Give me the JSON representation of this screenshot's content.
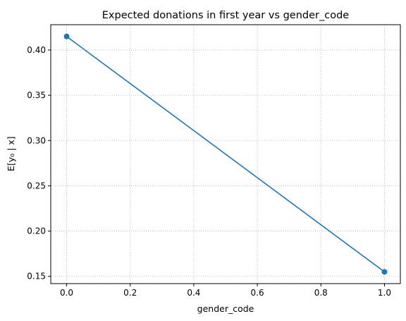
{
  "chart_data": {
    "type": "line",
    "title": "Expected donations in first year vs gender_code",
    "xlabel": "gender_code",
    "ylabel": "E[y₀ | x]",
    "xlim": [
      -0.05,
      1.05
    ],
    "ylim": [
      0.142,
      0.428
    ],
    "xticks": [
      0.0,
      0.2,
      0.4,
      0.6,
      0.8,
      1.0
    ],
    "xtick_labels": [
      "0.0",
      "0.2",
      "0.4",
      "0.6",
      "0.8",
      "1.0"
    ],
    "yticks": [
      0.15,
      0.2,
      0.25,
      0.3,
      0.35,
      0.4
    ],
    "ytick_labels": [
      "0.15",
      "0.20",
      "0.25",
      "0.30",
      "0.35",
      "0.40"
    ],
    "grid": true,
    "grid_style": "dotted",
    "series": [
      {
        "x": [
          0.0,
          1.0
        ],
        "y": [
          0.415,
          0.155
        ],
        "color": "#1f77b4",
        "markers": true
      }
    ]
  }
}
